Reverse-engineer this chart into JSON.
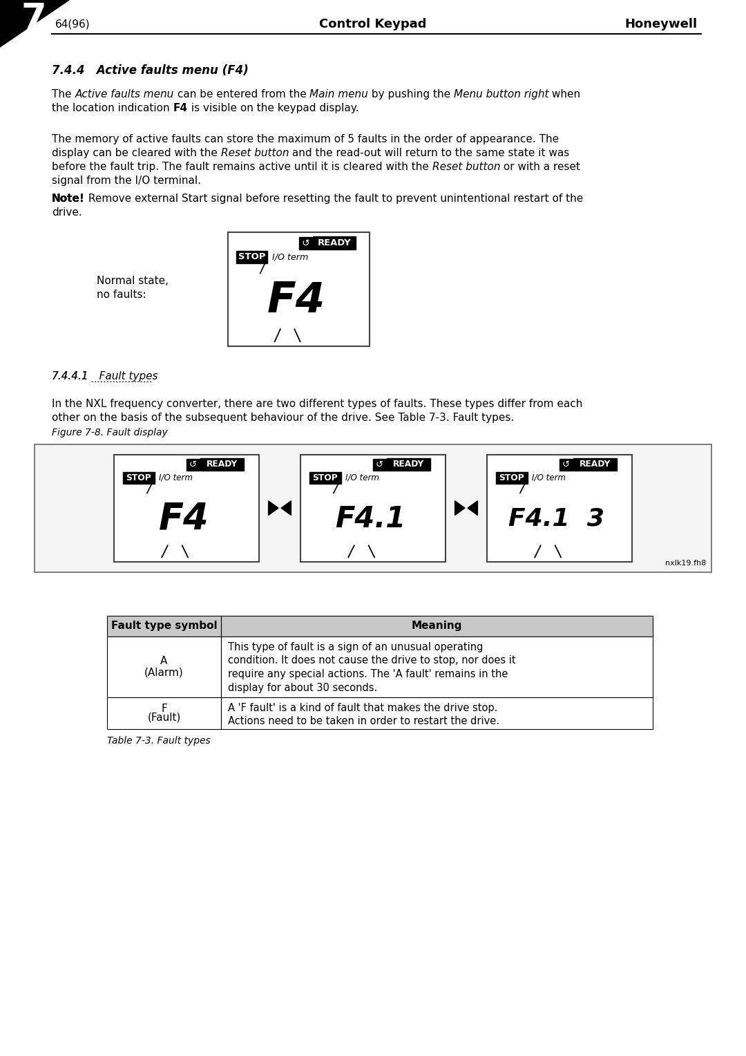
{
  "page_number": "64(96)",
  "center_header": "Control Keypad",
  "right_header": "Honeywell",
  "chapter_num": "7",
  "section_title": "7.4.4   Active faults menu (F4)",
  "para1_line1": "The ",
  "para1_italic1": "Active faults menu",
  "para1_line1b": " can be entered from the ",
  "para1_italic2": "Main menu",
  "para1_line1c": " by pushing the ",
  "para1_italic3": "Menu button right",
  "para1_line1d": " when",
  "para1_line2": "the location indication ",
  "para1_bold1": "F4",
  "para1_line2b": " is visible on the keypad display.",
  "para2_line1": "The memory of active faults can store the maximum of 5 faults in the order of appearance. The",
  "para2_line2": "display can be cleared with the ",
  "para2_italic1": "Reset button",
  "para2_line2b": " and the read-out will return to the same state it was",
  "para2_line3": "before the fault trip. The fault remains active until it is cleared with the ",
  "para2_italic2": "Reset button",
  "para2_line3b": " or with a reset",
  "para2_line4": "signal from the I/O terminal.",
  "note_bold": "Note!",
  "note_rest": " Remove external Start signal before resetting the fault to prevent unintentional restart of the",
  "note_line2": "drive.",
  "normal_state_label1": "Normal state,",
  "normal_state_label2": "no faults:",
  "subsection_num": "7.4.4.1",
  "subsection_title": "   Fault types",
  "para3_line1": "In the NXL frequency converter, there are two different types of faults. These types differ from each",
  "para3_line2": "other on the basis of the subsequent behaviour of the drive. See Table 7-3. Fault types.",
  "fig_caption": "Figure 7-8. Fault display",
  "fig_note": "nxlk19.fh8",
  "table_caption": "Table 7-3. Fault types",
  "table_col1_header": "Fault type symbol",
  "table_col2_header": "Meaning",
  "row1_sym1": "A",
  "row1_sym2": "(Alarm)",
  "row1_meaning": "This type of fault is a sign of an unusual operating\ncondition. It does not cause the drive to stop, nor does it\nrequire any special actions. The 'A fault' remains in the\ndisplay for about 30 seconds.",
  "row2_sym1": "F",
  "row2_sym2": "(Fault)",
  "row2_meaning": "A 'F fault' is a kind of fault that makes the drive stop.\nActions need to be taken in order to restart the drive.",
  "bg_color": "#ffffff"
}
